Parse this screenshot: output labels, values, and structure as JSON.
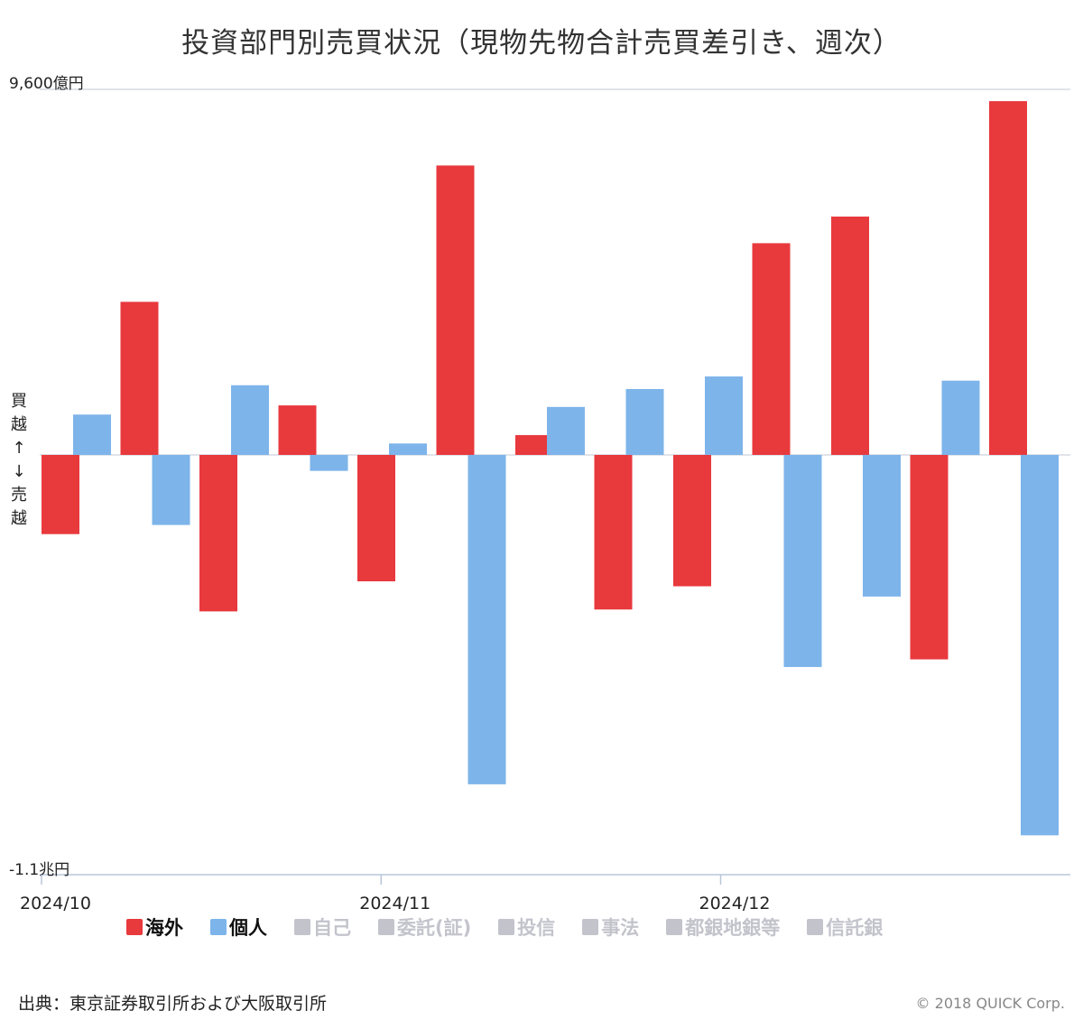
{
  "title": "投資部門別売買状況（現物先物合計売買差引き、週次）",
  "side_label": {
    "buy": [
      "買",
      "越",
      "↑"
    ],
    "sell": [
      "↓",
      "売",
      "越"
    ]
  },
  "legend": [
    {
      "label": "海外",
      "color": "#e8393d",
      "active": true
    },
    {
      "label": "個人",
      "color": "#7db4ea",
      "active": true
    },
    {
      "label": "自己",
      "color": "#c3c3cc",
      "active": false
    },
    {
      "label": "委託(証)",
      "color": "#c3c3cc",
      "active": false
    },
    {
      "label": "投信",
      "color": "#c3c3cc",
      "active": false
    },
    {
      "label": "事法",
      "color": "#c3c3cc",
      "active": false
    },
    {
      "label": "都銀地銀等",
      "color": "#c3c3cc",
      "active": false
    },
    {
      "label": "信託銀",
      "color": "#c3c3cc",
      "active": false
    }
  ],
  "source": "出典：東京証券取引所および大阪取引所",
  "copyright": "© 2018 QUICK Corp.",
  "chart_data": {
    "type": "bar",
    "unit": "億円",
    "y_max_label": "9,600億円",
    "y_min_label": "-1.1兆円",
    "ylim": [
      -11000,
      9600
    ],
    "x_tick_labels": [
      {
        "label": "2024/10",
        "week_index": 0
      },
      {
        "label": "2024/11",
        "week_index": 4.3
      },
      {
        "label": "2024/12",
        "week_index": 8.6
      }
    ],
    "weeks": 13,
    "series": [
      {
        "name": "海外",
        "color": "#e8393d",
        "values": [
          -2080,
          4020,
          -4110,
          1300,
          -3320,
          7600,
          520,
          -4060,
          -3450,
          5560,
          6260,
          -5370,
          9290
        ]
      },
      {
        "name": "個人",
        "color": "#7db4ea",
        "values": [
          1060,
          -1840,
          1830,
          -420,
          300,
          -8650,
          1260,
          1730,
          2060,
          -5570,
          -3720,
          1950,
          -9990
        ]
      }
    ]
  }
}
